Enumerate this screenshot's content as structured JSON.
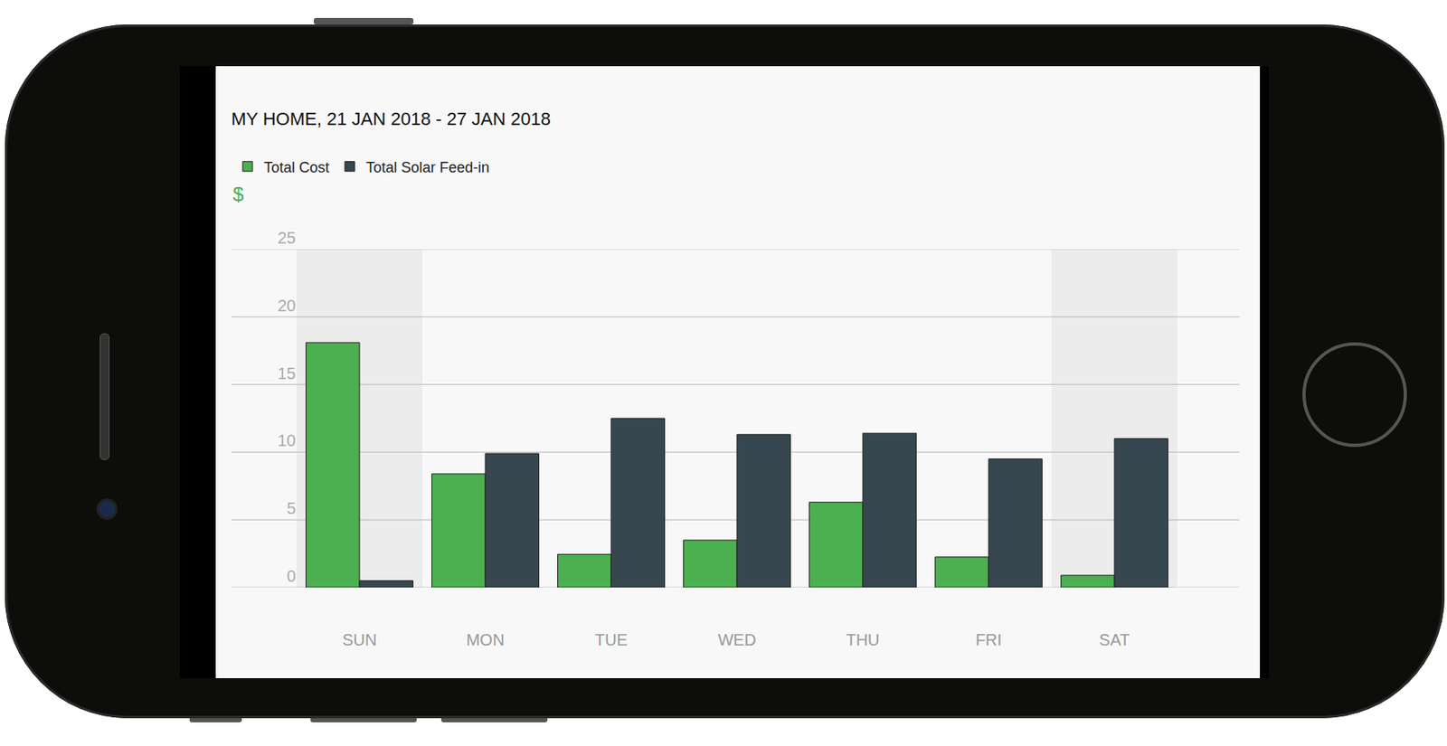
{
  "chart_data": {
    "type": "bar",
    "title": "MY HOME, 21 JAN 2018 - 27 JAN 2018",
    "ylabel": "$",
    "categories": [
      "SUN",
      "MON",
      "TUE",
      "WED",
      "THU",
      "FRI",
      "SAT"
    ],
    "series": [
      {
        "name": "Total Cost",
        "color": "#4caf50",
        "values": [
          18.1,
          8.4,
          2.45,
          3.5,
          6.3,
          2.25,
          0.9
        ]
      },
      {
        "name": "Total Solar Feed-in",
        "color": "#37474f",
        "values": [
          0.5,
          9.9,
          12.5,
          11.3,
          11.4,
          9.5,
          11.0
        ]
      }
    ],
    "ylim": [
      0,
      25
    ],
    "yticks": [
      0,
      5,
      10,
      15,
      20,
      25
    ],
    "grid": true,
    "legend": "top left"
  }
}
